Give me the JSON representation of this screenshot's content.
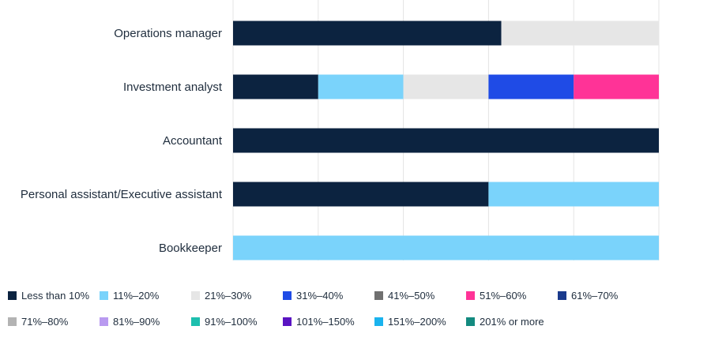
{
  "chart_data": {
    "type": "bar",
    "orientation": "horizontal",
    "stacked": true,
    "categories": [
      "Operations manager",
      "Investment analyst",
      "Accountant",
      "Personal assistant/Executive assistant",
      "Bookkeeper"
    ],
    "xlim": [
      0,
      100
    ],
    "grid": true,
    "legend_position": "bottom",
    "series": [
      {
        "name": "Less than 10%",
        "color": "#0c2340",
        "values": [
          63,
          20,
          100,
          60,
          0
        ]
      },
      {
        "name": "11%–20%",
        "color": "#7ad3fb",
        "values": [
          0,
          20,
          0,
          40,
          100
        ]
      },
      {
        "name": "21%–30%",
        "color": "#e6e6e6",
        "values": [
          37,
          20,
          0,
          0,
          0
        ]
      },
      {
        "name": "31%–40%",
        "color": "#1f4be6",
        "values": [
          0,
          20,
          0,
          0,
          0
        ]
      },
      {
        "name": "41%–50%",
        "color": "#707070",
        "values": [
          0,
          0,
          0,
          0,
          0
        ]
      },
      {
        "name": "51%–60%",
        "color": "#ff3397",
        "values": [
          0,
          20,
          0,
          0,
          0
        ]
      },
      {
        "name": "61%–70%",
        "color": "#1a3a8c",
        "values": [
          0,
          0,
          0,
          0,
          0
        ]
      },
      {
        "name": "71%–80%",
        "color": "#b3b3b3",
        "values": [
          0,
          0,
          0,
          0,
          0
        ]
      },
      {
        "name": "81%–90%",
        "color": "#b99af0",
        "values": [
          0,
          0,
          0,
          0,
          0
        ]
      },
      {
        "name": "91%–100%",
        "color": "#1dbfae",
        "values": [
          0,
          0,
          0,
          0,
          0
        ]
      },
      {
        "name": "101%–150%",
        "color": "#5a14c2",
        "values": [
          0,
          0,
          0,
          0,
          0
        ]
      },
      {
        "name": "151%–200%",
        "color": "#1ab3ee",
        "values": [
          0,
          0,
          0,
          0,
          0
        ]
      },
      {
        "name": "201% or more",
        "color": "#138a7f",
        "values": [
          0,
          0,
          0,
          0,
          0
        ]
      }
    ]
  }
}
